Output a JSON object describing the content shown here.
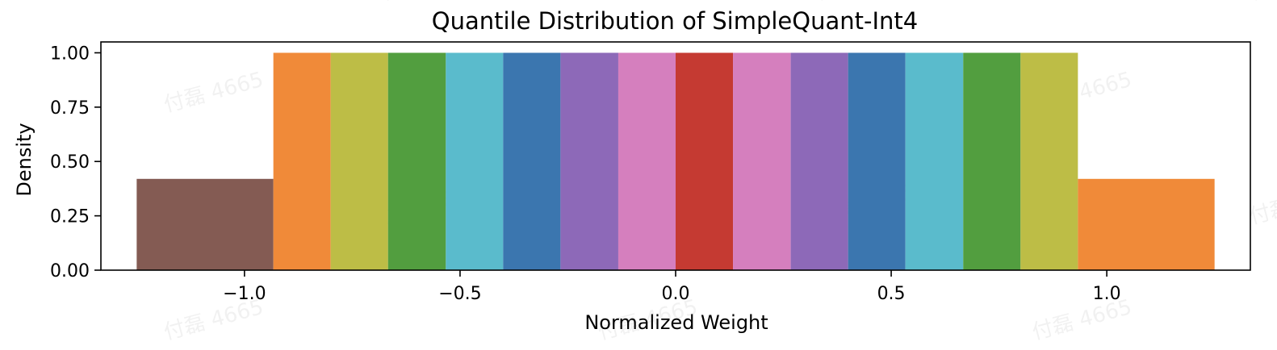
{
  "chart_data": {
    "type": "bar",
    "title": "Quantile Distribution of SimpleQuant-Int4",
    "xlabel": "Normalized Weight",
    "ylabel": "Density",
    "xlim": [
      -1.333,
      1.333
    ],
    "ylim": [
      0,
      1.05
    ],
    "grid": false,
    "legend": "none",
    "xticks": [
      {
        "value": -1.0,
        "label": "−1.0"
      },
      {
        "value": -0.5,
        "label": "−0.5"
      },
      {
        "value": 0.0,
        "label": "0.0"
      },
      {
        "value": 0.5,
        "label": "0.5"
      },
      {
        "value": 1.0,
        "label": "1.0"
      }
    ],
    "yticks": [
      {
        "value": 0.0,
        "label": "0.00"
      },
      {
        "value": 0.25,
        "label": "0.25"
      },
      {
        "value": 0.5,
        "label": "0.50"
      },
      {
        "value": 0.75,
        "label": "0.75"
      },
      {
        "value": 1.0,
        "label": "1.00"
      }
    ],
    "bars": [
      {
        "x0": -1.25,
        "x1": -0.933,
        "value": 0.42,
        "color": "#845B53"
      },
      {
        "x0": -0.933,
        "x1": -0.8,
        "value": 1.0,
        "color": "#F08A39"
      },
      {
        "x0": -0.8,
        "x1": -0.667,
        "value": 1.0,
        "color": "#BDBD46"
      },
      {
        "x0": -0.667,
        "x1": -0.533,
        "value": 1.0,
        "color": "#529E3F"
      },
      {
        "x0": -0.533,
        "x1": -0.4,
        "value": 1.0,
        "color": "#5ABBCC"
      },
      {
        "x0": -0.4,
        "x1": -0.267,
        "value": 1.0,
        "color": "#3B76AF"
      },
      {
        "x0": -0.267,
        "x1": -0.133,
        "value": 1.0,
        "color": "#8D69B8"
      },
      {
        "x0": -0.133,
        "x1": 0.0,
        "value": 1.0,
        "color": "#D57FBE"
      },
      {
        "x0": 0.0,
        "x1": 0.133,
        "value": 1.0,
        "color": "#C53A32"
      },
      {
        "x0": 0.133,
        "x1": 0.267,
        "value": 1.0,
        "color": "#D57FBE"
      },
      {
        "x0": 0.267,
        "x1": 0.4,
        "value": 1.0,
        "color": "#8D69B8"
      },
      {
        "x0": 0.4,
        "x1": 0.533,
        "value": 1.0,
        "color": "#3B76AF"
      },
      {
        "x0": 0.533,
        "x1": 0.667,
        "value": 1.0,
        "color": "#5ABBCC"
      },
      {
        "x0": 0.667,
        "x1": 0.8,
        "value": 1.0,
        "color": "#529E3F"
      },
      {
        "x0": 0.8,
        "x1": 0.933,
        "value": 1.0,
        "color": "#BDBD46"
      },
      {
        "x0": 0.933,
        "x1": 1.25,
        "value": 0.42,
        "color": "#F08A39"
      }
    ]
  },
  "watermark": {
    "text": "付磊 4665",
    "positions": [
      [
        0.13,
        0.32
      ],
      [
        0.47,
        0.32
      ],
      [
        0.81,
        0.32
      ],
      [
        0.3,
        0.64
      ],
      [
        0.64,
        0.64
      ],
      [
        0.98,
        0.64
      ],
      [
        0.13,
        0.97
      ],
      [
        0.47,
        0.97
      ],
      [
        0.81,
        0.97
      ],
      [
        0.3,
        0.0
      ],
      [
        0.64,
        0.0
      ],
      [
        0.98,
        0.0
      ]
    ]
  }
}
